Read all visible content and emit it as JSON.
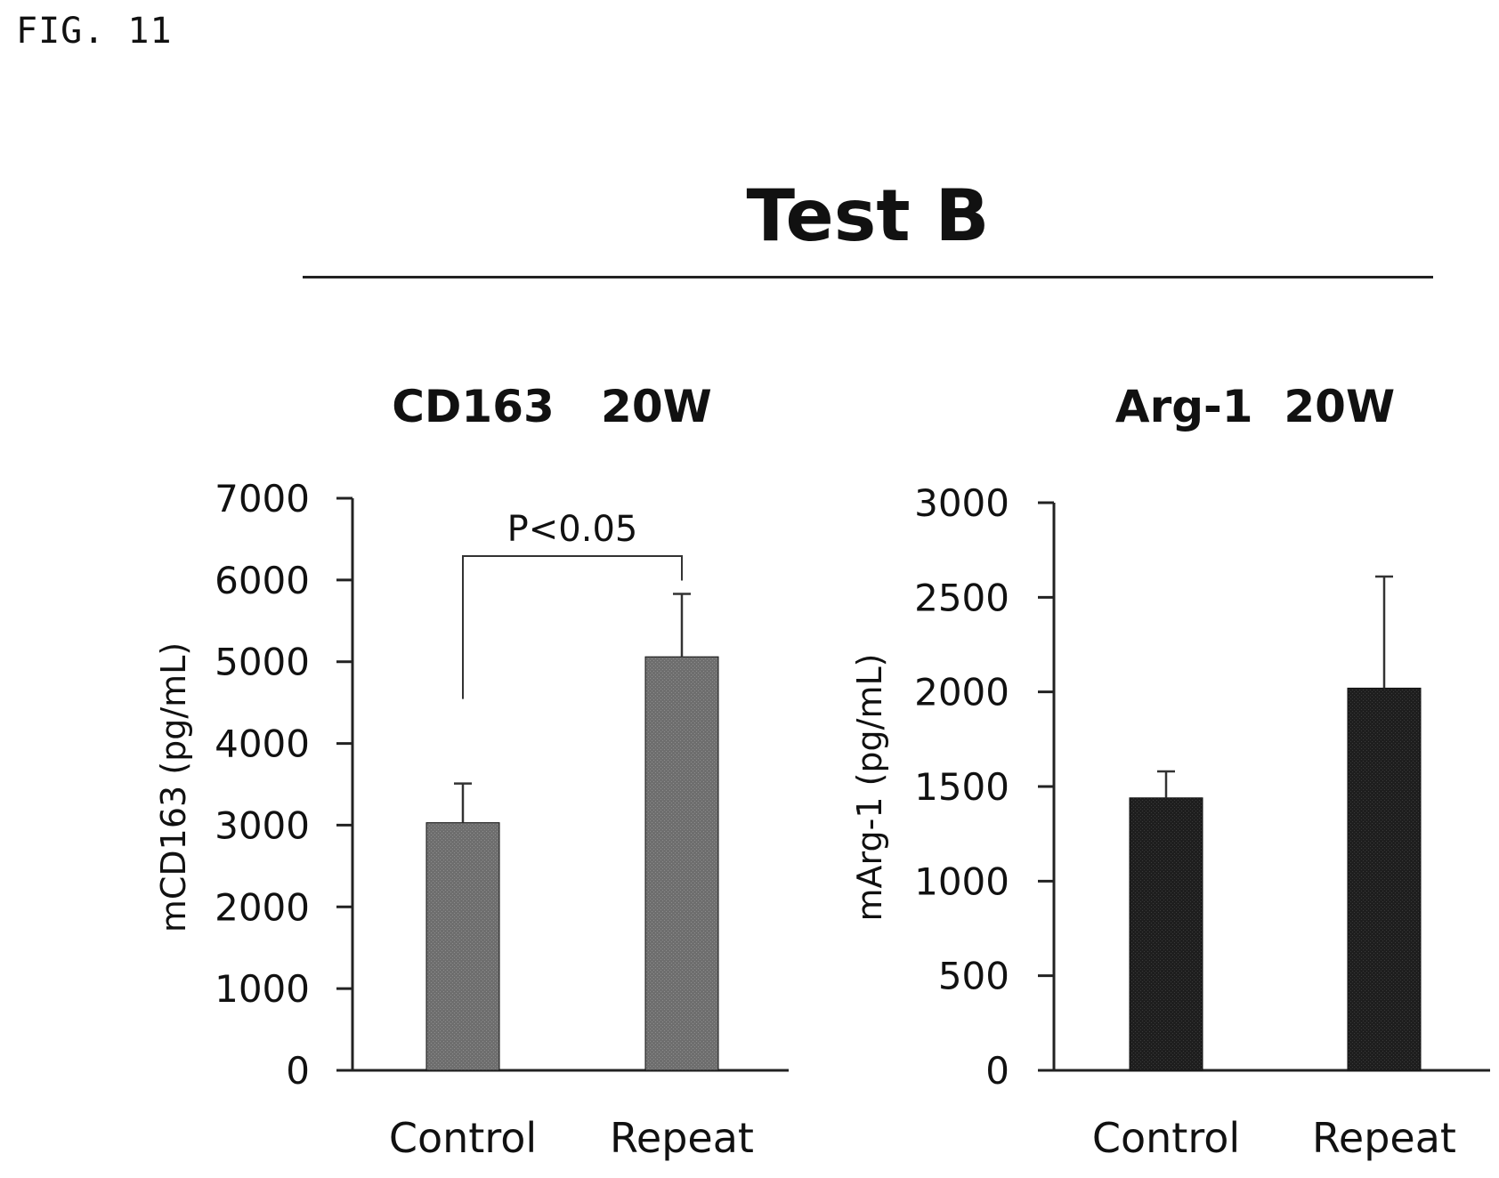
{
  "figure_label": "FIG. 11",
  "main_title": "Test B",
  "colors": {
    "left_bars": "#6e6e6e",
    "right_bars": "#1e1e1e",
    "axis": "#222222"
  },
  "chart_data": [
    {
      "type": "bar",
      "title": "CD163   20W",
      "ylabel": "mCD163 (pg/mL)",
      "xlabel": "",
      "categories": [
        "Control",
        "Repeat"
      ],
      "values": [
        3030,
        5060
      ],
      "errors": [
        480,
        770
      ],
      "ylim": [
        0,
        7000
      ],
      "yticks": [
        0,
        1000,
        2000,
        3000,
        4000,
        5000,
        6000,
        7000
      ],
      "grid": false,
      "annotation": {
        "text": "P<0.05",
        "between": [
          "Control",
          "Repeat"
        ]
      }
    },
    {
      "type": "bar",
      "title": "Arg-1  20W",
      "ylabel": "mArg-1 (pg/mL)",
      "xlabel": "",
      "categories": [
        "Control",
        "Repeat"
      ],
      "values": [
        1440,
        2020
      ],
      "errors": [
        140,
        590
      ],
      "ylim": [
        0,
        3000
      ],
      "yticks": [
        0,
        500,
        1000,
        1500,
        2000,
        2500,
        3000
      ],
      "grid": false
    }
  ]
}
